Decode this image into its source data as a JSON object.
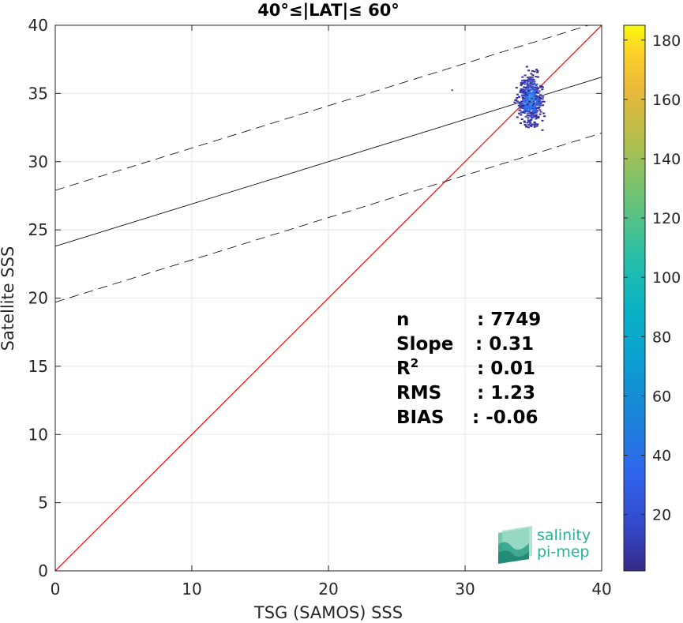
{
  "chart_data": {
    "type": "scatter",
    "title": "40°≤|LAT|≤ 60°",
    "xlabel": "TSG (SAMOS) SSS",
    "ylabel": "Satellite SSS",
    "xlim": [
      0,
      40
    ],
    "ylim": [
      0,
      40
    ],
    "xticks": [
      "0",
      "10",
      "20",
      "30",
      "40"
    ],
    "yticks": [
      "0",
      "5",
      "10",
      "15",
      "20",
      "25",
      "30",
      "35",
      "40"
    ],
    "grid": true,
    "identity_line": {
      "from": [
        0,
        0
      ],
      "to": [
        40,
        40
      ],
      "color": "#ff0000"
    },
    "regression_line": {
      "slope": 0.31,
      "intercept": 23.8
    },
    "confidence_lines": [
      {
        "slope": 0.31,
        "intercept": 27.9
      },
      {
        "slope": 0.31,
        "intercept": 19.7
      }
    ],
    "density_cluster": {
      "x_center": 34.7,
      "y_center": 34.6,
      "x_range": [
        33.0,
        35.8
      ],
      "y_range": [
        30.5,
        38.8
      ]
    },
    "colorbar": {
      "min": 1,
      "max": 185,
      "ticks": [
        "20",
        "40",
        "60",
        "80",
        "100",
        "120",
        "140",
        "160",
        "180"
      ],
      "colormap": "parula"
    },
    "stats": [
      {
        "label": "n",
        "value": ": 7749"
      },
      {
        "label": "Slope",
        "value": ": 0.31"
      },
      {
        "label": "R",
        "sup": "2",
        "value": ": 0.01"
      },
      {
        "label": "RMS",
        "value": ": 1.23"
      },
      {
        "label": "BIAS",
        "value": ": -0.06"
      }
    ]
  },
  "logo": {
    "line1": "salinity",
    "line2": "pi-mep"
  }
}
